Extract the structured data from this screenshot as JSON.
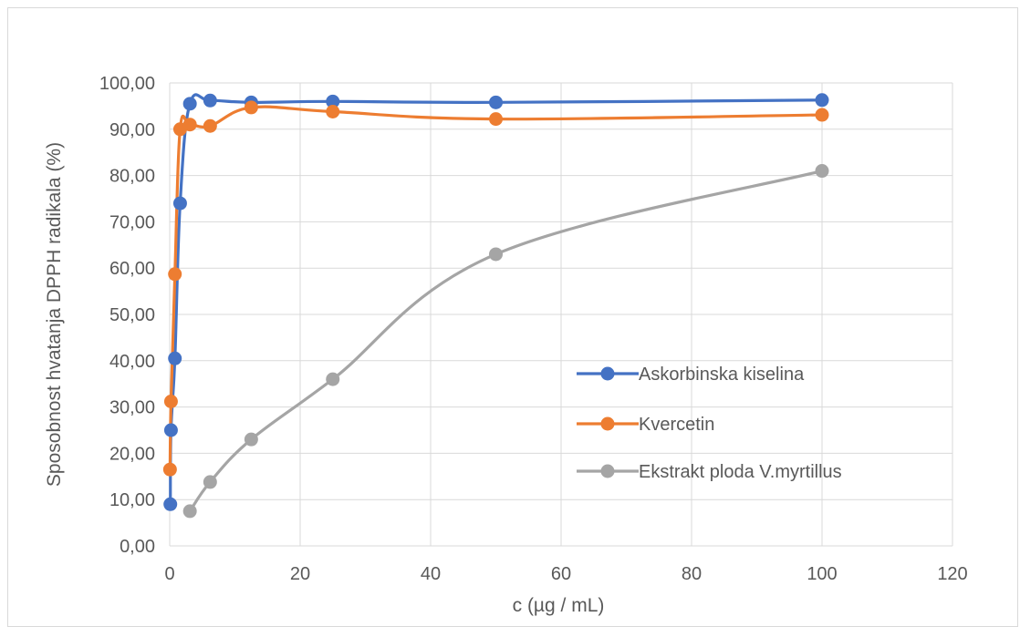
{
  "chart_data": {
    "type": "scatter",
    "title": "",
    "xlabel": "c (µg / mL)",
    "ylabel": "Sposobnost hvatanja DPPH radikala (%)",
    "xlim": [
      0,
      120
    ],
    "ylim": [
      0,
      100
    ],
    "x_ticks": [
      0,
      20,
      40,
      60,
      80,
      100,
      120
    ],
    "y_ticks": [
      0,
      10,
      20,
      30,
      40,
      50,
      60,
      70,
      80,
      90,
      100
    ],
    "x_tick_labels": [
      "0",
      "20",
      "40",
      "60",
      "80",
      "100",
      "120"
    ],
    "y_tick_labels": [
      "0,00",
      "10,00",
      "20,00",
      "30,00",
      "40,00",
      "50,00",
      "60,00",
      "70,00",
      "80,00",
      "90,00",
      "100,00"
    ],
    "grid": true,
    "smooth_lines": true,
    "markers": true,
    "legend_position": "right-middle",
    "series": [
      {
        "name": "Askorbinska kiselina",
        "color": "#4472c4",
        "points": [
          [
            0.1,
            9.0
          ],
          [
            0.2,
            25.0
          ],
          [
            0.8,
            40.5
          ],
          [
            1.6,
            74.0
          ],
          [
            3.1,
            95.5
          ],
          [
            6.2,
            96.2
          ],
          [
            12.5,
            95.8
          ],
          [
            25,
            96.0
          ],
          [
            50,
            95.8
          ],
          [
            100,
            96.3
          ]
        ]
      },
      {
        "name": "Kvercetin",
        "color": "#ed7d31",
        "points": [
          [
            0.05,
            16.5
          ],
          [
            0.2,
            31.2
          ],
          [
            0.8,
            58.7
          ],
          [
            1.6,
            90.0
          ],
          [
            3.1,
            91.0
          ],
          [
            6.2,
            90.7
          ],
          [
            12.5,
            94.7
          ],
          [
            25,
            93.8
          ],
          [
            50,
            92.2
          ],
          [
            100,
            93.1
          ]
        ]
      },
      {
        "name": "Ekstrakt ploda V.myrtillus",
        "color": "#a5a5a5",
        "points": [
          [
            3.1,
            7.5
          ],
          [
            6.2,
            13.8
          ],
          [
            12.5,
            23.0
          ],
          [
            25,
            36.0
          ],
          [
            50,
            63.0
          ],
          [
            100,
            81.0
          ]
        ]
      }
    ]
  }
}
